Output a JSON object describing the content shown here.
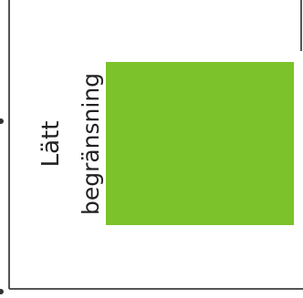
{
  "chart_data": {
    "type": "bar",
    "categories": [
      "Lätt begränsning"
    ],
    "category_lines": [
      [
        "Lätt",
        "begränsning"
      ]
    ],
    "values": [
      1
    ],
    "series": [
      {
        "values": [
          1
        ],
        "color": "#7cc22a"
      }
    ],
    "title": "",
    "xlabel": "",
    "ylabel": "",
    "grid": false,
    "legend": "none"
  },
  "colors": {
    "bar": "#7cc22a",
    "frame": "#555555",
    "text": "#222222"
  }
}
